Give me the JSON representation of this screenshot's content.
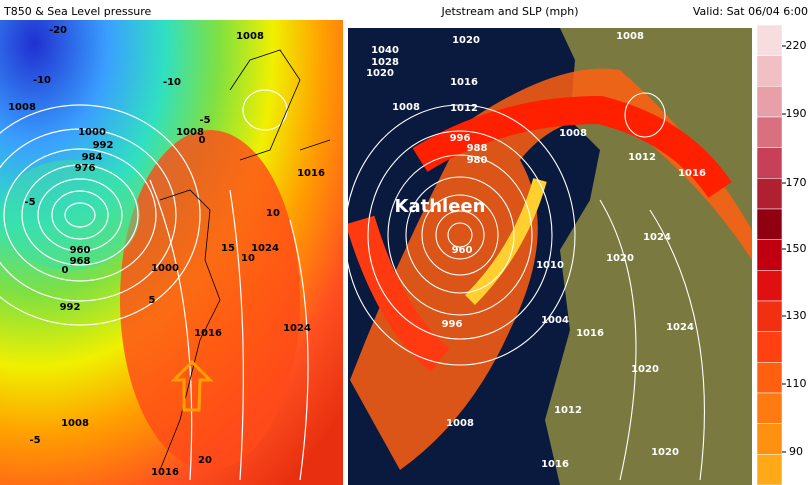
{
  "header": {
    "left_title": "T850 & Sea Level pressure",
    "center_title": "Jetstream and SLP (mph)",
    "valid": "Valid: Sat 06/04 6:00"
  },
  "left_map": {
    "labels": [
      "-20",
      "-10",
      "-5",
      "0",
      "1008",
      "1000",
      "992",
      "984",
      "976",
      "-5",
      "960",
      "968",
      "0",
      "992",
      "1000",
      "15",
      "1024",
      "10",
      "1016",
      "1024",
      "1016",
      "1008",
      "-5",
      "20",
      "1016",
      "1008",
      "-10",
      "1008",
      "10",
      "5"
    ]
  },
  "right_map": {
    "storm_name": "Kathleen",
    "labels": [
      "1020",
      "1040",
      "1028",
      "1020",
      "1016",
      "1008",
      "1012",
      "1008",
      "1008",
      "1012",
      "1016",
      "996",
      "988",
      "980",
      "960",
      "996",
      "1024",
      "1020",
      "1010",
      "1024",
      "1016",
      "1004",
      "1020",
      "1008",
      "1012",
      "1016",
      "1020"
    ]
  },
  "colorbar": {
    "ticks": [
      220,
      190,
      170,
      150,
      130,
      110,
      90
    ]
  }
}
